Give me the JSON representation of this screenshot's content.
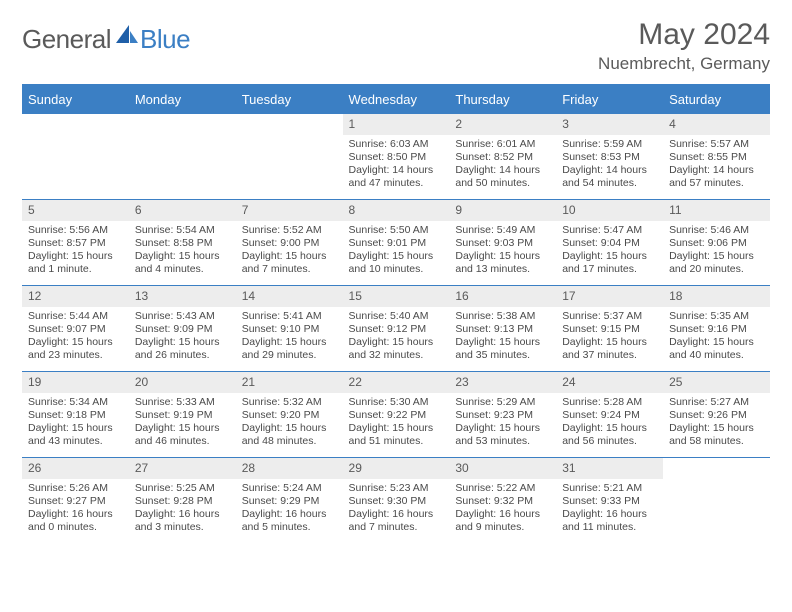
{
  "brand": {
    "general": "General",
    "blue": "Blue"
  },
  "title": "May 2024",
  "location": "Nuembrecht, Germany",
  "colors": {
    "accent": "#3b7fc4",
    "daynum_bg": "#ededed",
    "text": "#5a5a5a"
  },
  "weekdays": [
    "Sunday",
    "Monday",
    "Tuesday",
    "Wednesday",
    "Thursday",
    "Friday",
    "Saturday"
  ],
  "weeks": [
    [
      {
        "n": "",
        "sunrise": "",
        "sunset": "",
        "day1": "",
        "day2": "",
        "empty": true
      },
      {
        "n": "",
        "sunrise": "",
        "sunset": "",
        "day1": "",
        "day2": "",
        "empty": true
      },
      {
        "n": "",
        "sunrise": "",
        "sunset": "",
        "day1": "",
        "day2": "",
        "empty": true
      },
      {
        "n": "1",
        "sunrise": "Sunrise: 6:03 AM",
        "sunset": "Sunset: 8:50 PM",
        "day1": "Daylight: 14 hours",
        "day2": "and 47 minutes."
      },
      {
        "n": "2",
        "sunrise": "Sunrise: 6:01 AM",
        "sunset": "Sunset: 8:52 PM",
        "day1": "Daylight: 14 hours",
        "day2": "and 50 minutes."
      },
      {
        "n": "3",
        "sunrise": "Sunrise: 5:59 AM",
        "sunset": "Sunset: 8:53 PM",
        "day1": "Daylight: 14 hours",
        "day2": "and 54 minutes."
      },
      {
        "n": "4",
        "sunrise": "Sunrise: 5:57 AM",
        "sunset": "Sunset: 8:55 PM",
        "day1": "Daylight: 14 hours",
        "day2": "and 57 minutes."
      }
    ],
    [
      {
        "n": "5",
        "sunrise": "Sunrise: 5:56 AM",
        "sunset": "Sunset: 8:57 PM",
        "day1": "Daylight: 15 hours",
        "day2": "and 1 minute."
      },
      {
        "n": "6",
        "sunrise": "Sunrise: 5:54 AM",
        "sunset": "Sunset: 8:58 PM",
        "day1": "Daylight: 15 hours",
        "day2": "and 4 minutes."
      },
      {
        "n": "7",
        "sunrise": "Sunrise: 5:52 AM",
        "sunset": "Sunset: 9:00 PM",
        "day1": "Daylight: 15 hours",
        "day2": "and 7 minutes."
      },
      {
        "n": "8",
        "sunrise": "Sunrise: 5:50 AM",
        "sunset": "Sunset: 9:01 PM",
        "day1": "Daylight: 15 hours",
        "day2": "and 10 minutes."
      },
      {
        "n": "9",
        "sunrise": "Sunrise: 5:49 AM",
        "sunset": "Sunset: 9:03 PM",
        "day1": "Daylight: 15 hours",
        "day2": "and 13 minutes."
      },
      {
        "n": "10",
        "sunrise": "Sunrise: 5:47 AM",
        "sunset": "Sunset: 9:04 PM",
        "day1": "Daylight: 15 hours",
        "day2": "and 17 minutes."
      },
      {
        "n": "11",
        "sunrise": "Sunrise: 5:46 AM",
        "sunset": "Sunset: 9:06 PM",
        "day1": "Daylight: 15 hours",
        "day2": "and 20 minutes."
      }
    ],
    [
      {
        "n": "12",
        "sunrise": "Sunrise: 5:44 AM",
        "sunset": "Sunset: 9:07 PM",
        "day1": "Daylight: 15 hours",
        "day2": "and 23 minutes."
      },
      {
        "n": "13",
        "sunrise": "Sunrise: 5:43 AM",
        "sunset": "Sunset: 9:09 PM",
        "day1": "Daylight: 15 hours",
        "day2": "and 26 minutes."
      },
      {
        "n": "14",
        "sunrise": "Sunrise: 5:41 AM",
        "sunset": "Sunset: 9:10 PM",
        "day1": "Daylight: 15 hours",
        "day2": "and 29 minutes."
      },
      {
        "n": "15",
        "sunrise": "Sunrise: 5:40 AM",
        "sunset": "Sunset: 9:12 PM",
        "day1": "Daylight: 15 hours",
        "day2": "and 32 minutes."
      },
      {
        "n": "16",
        "sunrise": "Sunrise: 5:38 AM",
        "sunset": "Sunset: 9:13 PM",
        "day1": "Daylight: 15 hours",
        "day2": "and 35 minutes."
      },
      {
        "n": "17",
        "sunrise": "Sunrise: 5:37 AM",
        "sunset": "Sunset: 9:15 PM",
        "day1": "Daylight: 15 hours",
        "day2": "and 37 minutes."
      },
      {
        "n": "18",
        "sunrise": "Sunrise: 5:35 AM",
        "sunset": "Sunset: 9:16 PM",
        "day1": "Daylight: 15 hours",
        "day2": "and 40 minutes."
      }
    ],
    [
      {
        "n": "19",
        "sunrise": "Sunrise: 5:34 AM",
        "sunset": "Sunset: 9:18 PM",
        "day1": "Daylight: 15 hours",
        "day2": "and 43 minutes."
      },
      {
        "n": "20",
        "sunrise": "Sunrise: 5:33 AM",
        "sunset": "Sunset: 9:19 PM",
        "day1": "Daylight: 15 hours",
        "day2": "and 46 minutes."
      },
      {
        "n": "21",
        "sunrise": "Sunrise: 5:32 AM",
        "sunset": "Sunset: 9:20 PM",
        "day1": "Daylight: 15 hours",
        "day2": "and 48 minutes."
      },
      {
        "n": "22",
        "sunrise": "Sunrise: 5:30 AM",
        "sunset": "Sunset: 9:22 PM",
        "day1": "Daylight: 15 hours",
        "day2": "and 51 minutes."
      },
      {
        "n": "23",
        "sunrise": "Sunrise: 5:29 AM",
        "sunset": "Sunset: 9:23 PM",
        "day1": "Daylight: 15 hours",
        "day2": "and 53 minutes."
      },
      {
        "n": "24",
        "sunrise": "Sunrise: 5:28 AM",
        "sunset": "Sunset: 9:24 PM",
        "day1": "Daylight: 15 hours",
        "day2": "and 56 minutes."
      },
      {
        "n": "25",
        "sunrise": "Sunrise: 5:27 AM",
        "sunset": "Sunset: 9:26 PM",
        "day1": "Daylight: 15 hours",
        "day2": "and 58 minutes."
      }
    ],
    [
      {
        "n": "26",
        "sunrise": "Sunrise: 5:26 AM",
        "sunset": "Sunset: 9:27 PM",
        "day1": "Daylight: 16 hours",
        "day2": "and 0 minutes."
      },
      {
        "n": "27",
        "sunrise": "Sunrise: 5:25 AM",
        "sunset": "Sunset: 9:28 PM",
        "day1": "Daylight: 16 hours",
        "day2": "and 3 minutes."
      },
      {
        "n": "28",
        "sunrise": "Sunrise: 5:24 AM",
        "sunset": "Sunset: 9:29 PM",
        "day1": "Daylight: 16 hours",
        "day2": "and 5 minutes."
      },
      {
        "n": "29",
        "sunrise": "Sunrise: 5:23 AM",
        "sunset": "Sunset: 9:30 PM",
        "day1": "Daylight: 16 hours",
        "day2": "and 7 minutes."
      },
      {
        "n": "30",
        "sunrise": "Sunrise: 5:22 AM",
        "sunset": "Sunset: 9:32 PM",
        "day1": "Daylight: 16 hours",
        "day2": "and 9 minutes."
      },
      {
        "n": "31",
        "sunrise": "Sunrise: 5:21 AM",
        "sunset": "Sunset: 9:33 PM",
        "day1": "Daylight: 16 hours",
        "day2": "and 11 minutes."
      },
      {
        "n": "",
        "sunrise": "",
        "sunset": "",
        "day1": "",
        "day2": "",
        "empty": true
      }
    ]
  ]
}
